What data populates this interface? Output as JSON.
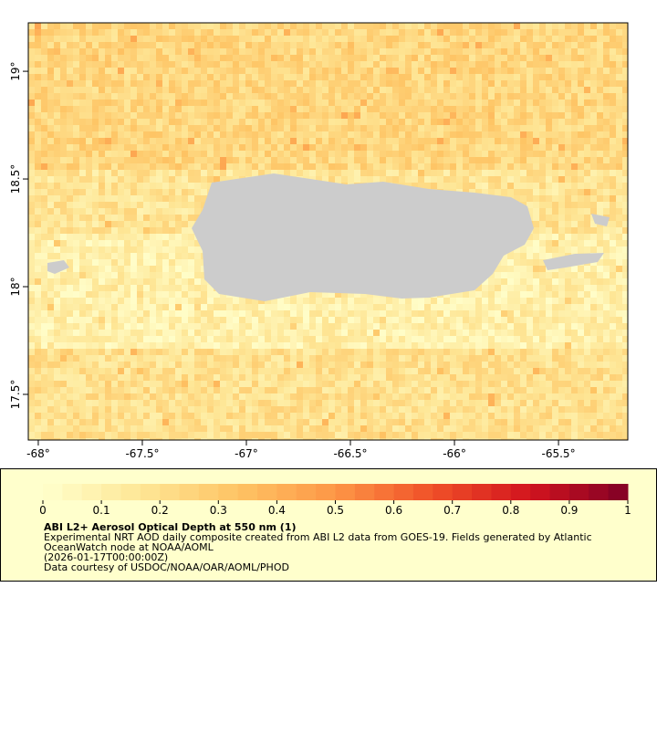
{
  "map": {
    "lon_axis": {
      "lim": [
        -68.048,
        -65.167
      ],
      "ticks": [
        {
          "value": -68,
          "label": "-68°"
        },
        {
          "value": -67.5,
          "label": "-67.5°"
        },
        {
          "value": -67,
          "label": "-67°"
        },
        {
          "value": -66.5,
          "label": "-66.5°"
        },
        {
          "value": -66,
          "label": "-66°"
        },
        {
          "value": -65.5,
          "label": "-65.5°"
        }
      ]
    },
    "lat_axis": {
      "lim": [
        17.288,
        19.225
      ],
      "ticks": [
        {
          "value": 19,
          "label": "19°"
        },
        {
          "value": 18.5,
          "label": "18.5°"
        },
        {
          "value": 18,
          "label": "18°"
        },
        {
          "value": 17.5,
          "label": "17.5°"
        }
      ]
    }
  },
  "colorbar": {
    "lim": [
      0,
      1
    ],
    "ticks": [
      0,
      0.1,
      0.2,
      0.3,
      0.4,
      0.5,
      0.6,
      0.7,
      0.8,
      0.9,
      1
    ]
  },
  "legend": {
    "title": "ABI L2+ Aerosol Optical Depth at 550 nm (1)",
    "lines": [
      "Experimental NRT AOD daily composite created from ABI L2 data from GOES-19. Fields generated by Atlantic",
      "OceanWatch node at NOAA/AOML",
      "(2026-01-17T00:00:00Z)",
      "Data courtesy of USDOC/NOAA/OAR/AOML/PHOD"
    ]
  }
}
